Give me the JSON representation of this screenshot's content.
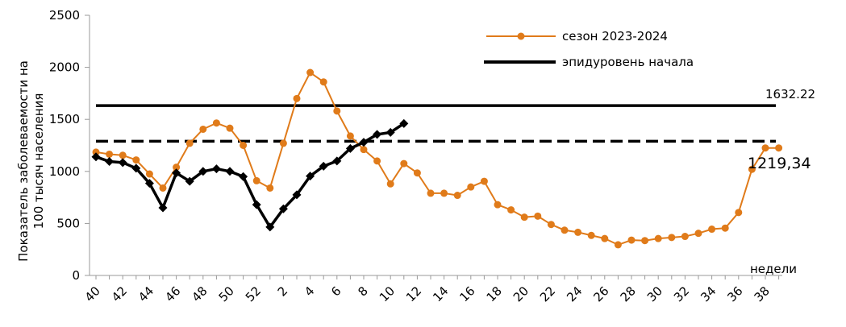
{
  "chart_data": {
    "type": "line",
    "title": "",
    "xlabel": "недели",
    "ylabel": "Показатель заболеваемости на 100 тысяч населения",
    "ylim": [
      0,
      2500
    ],
    "yticks": [
      0,
      500,
      1000,
      1500,
      2000,
      2500
    ],
    "grid": false,
    "legend_position": "top-right",
    "x_tick_labels": [
      "40",
      "42",
      "44",
      "46",
      "48",
      "50",
      "52",
      "2",
      "4",
      "6",
      "8",
      "10",
      "12",
      "14",
      "16",
      "18",
      "20",
      "22",
      "24",
      "26",
      "28",
      "30",
      "32",
      "34",
      "36",
      "38"
    ],
    "weeks": [
      "40",
      "41",
      "42",
      "43",
      "44",
      "45",
      "46",
      "47",
      "48",
      "49",
      "50",
      "51",
      "52",
      "1",
      "2",
      "3",
      "4",
      "5",
      "6",
      "7",
      "8",
      "9",
      "10",
      "11",
      "12",
      "13",
      "14",
      "15",
      "16",
      "17",
      "18",
      "19",
      "20",
      "21",
      "22",
      "23",
      "24",
      "25",
      "26",
      "27",
      "28",
      "29",
      "30",
      "31",
      "32",
      "33",
      "34",
      "35",
      "36",
      "37",
      "38",
      "39"
    ],
    "series": [
      {
        "name": "сезон 2023-2024",
        "color": "#E07B1A",
        "marker": "circle",
        "values": [
          1185,
          1165,
          1155,
          1110,
          975,
          840,
          1040,
          1270,
          1405,
          1465,
          1415,
          1250,
          910,
          840,
          1270,
          1700,
          1950,
          1860,
          1580,
          1340,
          1210,
          1100,
          880,
          1075,
          985,
          790,
          790,
          770,
          850,
          905,
          680,
          630,
          560,
          570,
          490,
          435,
          415,
          385,
          355,
          295,
          340,
          335,
          355,
          365,
          375,
          405,
          445,
          455,
          605,
          1020,
          1225,
          1225
        ]
      },
      {
        "color": "#000000",
        "marker": "diamond",
        "values": [
          1140,
          1095,
          1085,
          1030,
          885,
          650,
          985,
          905,
          1000,
          1025,
          1000,
          950,
          680,
          465,
          640,
          775,
          955,
          1050,
          1100,
          1220,
          1280,
          1355,
          1375,
          1460
        ]
      }
    ],
    "threshold_lines": [
      {
        "name": "эпидуровень начала",
        "value": 1632.22,
        "label": "1632.22",
        "style": "solid",
        "color": "#000000"
      },
      {
        "value": 1290,
        "style": "dashed",
        "color": "#000000"
      }
    ],
    "annotations": [
      {
        "text": "1219,34"
      }
    ]
  }
}
